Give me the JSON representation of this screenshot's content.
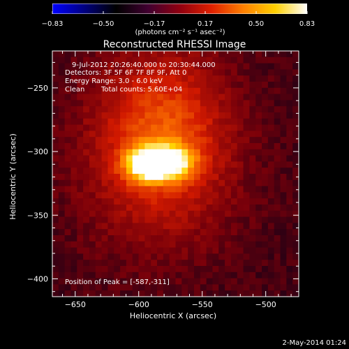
{
  "chart_data": {
    "type": "heatmap",
    "title": "Reconstructed RHESSI Image",
    "xlabel": "Heliocentric X (arcsec)",
    "ylabel": "Heliocentric Y (arcsec)",
    "xlim": [
      -668,
      -474
    ],
    "ylim": [
      -414,
      -221
    ],
    "xticks": [
      -650,
      -600,
      -550,
      -500
    ],
    "yticks": [
      -250,
      -300,
      -350,
      -400
    ],
    "xtick_labels": [
      "−650",
      "−600",
      "−550",
      "−500"
    ],
    "ytick_labels": [
      "−250",
      "−300",
      "−350",
      "−400"
    ],
    "colorbar": {
      "range": [
        -0.83,
        0.83
      ],
      "ticks": [
        "−0.83",
        "−0.50",
        "−0.17",
        "0.17",
        "0.50",
        "0.83"
      ],
      "label": "(photons cm⁻² s⁻¹ asec⁻²)",
      "colors": [
        "#0000ff",
        "#000080",
        "#000000",
        "#400030",
        "#900010",
        "#e02000",
        "#ff8000",
        "#ffd000",
        "#ffffff"
      ]
    },
    "annotations": [
      "9-Jul-2012 20:26:40.000 to 20:30:44.000",
      "Detectors: 3F 5F 6F 7F 8F 9F, Att 0",
      "Energy Range: 3.0 - 6.0 keV",
      "Clean",
      "Total counts: 5.60E+04"
    ],
    "peak_label": "Position of Peak = [-587,-311]",
    "peak": [
      -587,
      -311
    ],
    "sources": [
      {
        "x": -593,
        "y": -310,
        "peak": 0.83
      },
      {
        "x": -573,
        "y": -308,
        "peak": 0.6
      },
      {
        "x": -580,
        "y": -285,
        "peak": 0.3
      }
    ]
  },
  "footer": {
    "date": "2-May-2014 01:24"
  }
}
